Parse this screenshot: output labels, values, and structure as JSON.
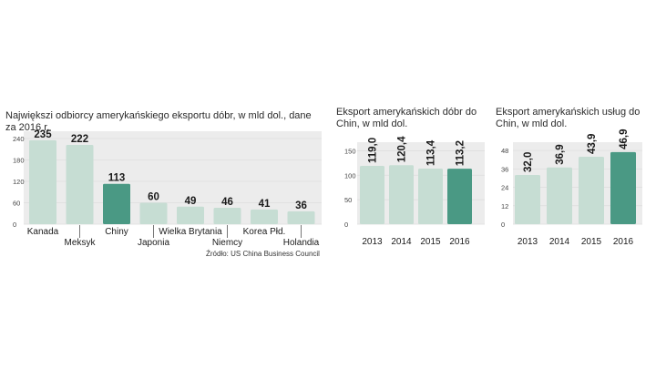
{
  "colors": {
    "bar": "#c6ddd3",
    "highlight": "#4a9984",
    "panel": "#ececec",
    "grid": "#dcdcdc"
  },
  "source": "Źródło: US China Business Council",
  "chart_data": [
    {
      "type": "bar",
      "title": "Największi odbiorcy amerykańskiego eksportu dóbr, w mld dol., dane za 2016 r.",
      "categories": [
        "Kanada",
        "Meksyk",
        "Chiny",
        "Japonia",
        "Wielka Brytania",
        "Niemcy",
        "Korea Płd.",
        "Holandia"
      ],
      "values": [
        235,
        222,
        113,
        60,
        49,
        46,
        41,
        36
      ],
      "value_labels": [
        "235",
        "222",
        "113",
        "60",
        "49",
        "46",
        "41",
        "36"
      ],
      "highlight_index": 2,
      "yticks": [
        0,
        60,
        120,
        180,
        240
      ],
      "ytick_labels": [
        "0",
        "60",
        "120",
        "180",
        "240"
      ],
      "ylim": [
        0,
        250
      ]
    },
    {
      "type": "bar",
      "title": "Eksport amerykańskich dóbr do Chin, w mld dol.",
      "categories": [
        "2013",
        "2014",
        "2015",
        "2016"
      ],
      "values": [
        119.0,
        120.4,
        113.4,
        113.2
      ],
      "value_labels": [
        "119,0",
        "120,4",
        "113,4",
        "113,2"
      ],
      "highlight_index": 3,
      "yticks": [
        0,
        50,
        100,
        150
      ],
      "ytick_labels": [
        "0",
        "50",
        "100",
        "150"
      ],
      "ylim": [
        0,
        160
      ]
    },
    {
      "type": "bar",
      "title": "Eksport amerykańskich usług do Chin, w mld dol.",
      "categories": [
        "2013",
        "2014",
        "2015",
        "2016"
      ],
      "values": [
        32.0,
        36.9,
        43.9,
        46.9
      ],
      "value_labels": [
        "32,0",
        "36,9",
        "43,9",
        "46,9"
      ],
      "highlight_index": 3,
      "yticks": [
        0,
        12,
        24,
        36,
        48
      ],
      "ytick_labels": [
        "0",
        "12",
        "24",
        "36",
        "48"
      ],
      "ylim": [
        0,
        51
      ]
    }
  ]
}
